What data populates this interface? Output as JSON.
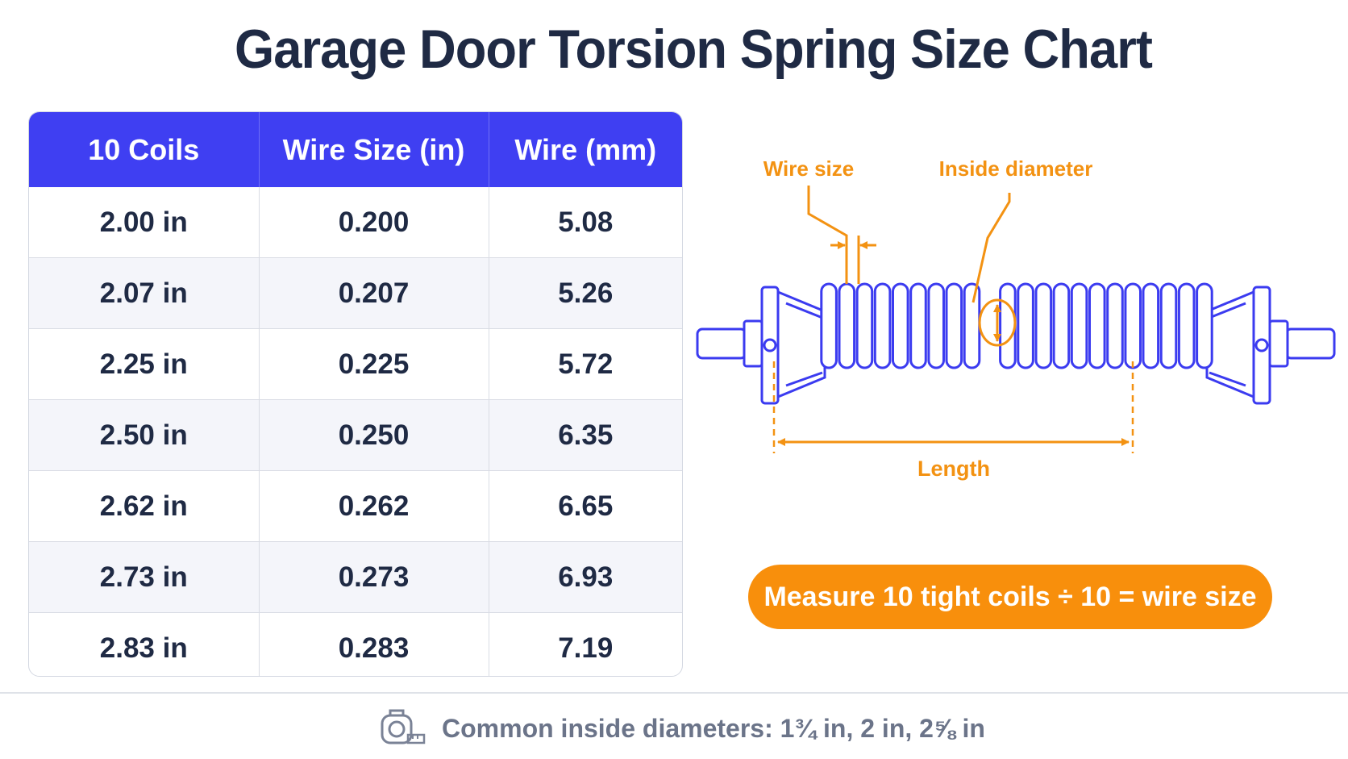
{
  "title": "Garage Door Torsion Spring Size Chart",
  "table": {
    "headers": [
      "10 Coils",
      "Wire Size (in)",
      "Wire (mm)"
    ],
    "rows": [
      [
        "2.00 in",
        "0.200",
        "5.08"
      ],
      [
        "2.07 in",
        "0.207",
        "5.26"
      ],
      [
        "2.25 in",
        "0.225",
        "5.72"
      ],
      [
        "2.50 in",
        "0.250",
        "6.35"
      ],
      [
        "2.62 in",
        "0.262",
        "6.65"
      ],
      [
        "2.73 in",
        "0.273",
        "6.93"
      ],
      [
        "2.83 in",
        "0.283",
        "7.19"
      ]
    ]
  },
  "diagram": {
    "wire_size_label": "Wire size",
    "inside_diameter_label": "Inside diameter",
    "length_label": "Length",
    "coil_color": "#3b3bf0",
    "annotation_color": "#f39212"
  },
  "callout": "Measure 10 tight coils ÷ 10 = wire size",
  "footer": {
    "icon": "tape-measure-icon",
    "text": "Common inside diameters: 1¾ in, 2 in, 2⅝ in"
  }
}
